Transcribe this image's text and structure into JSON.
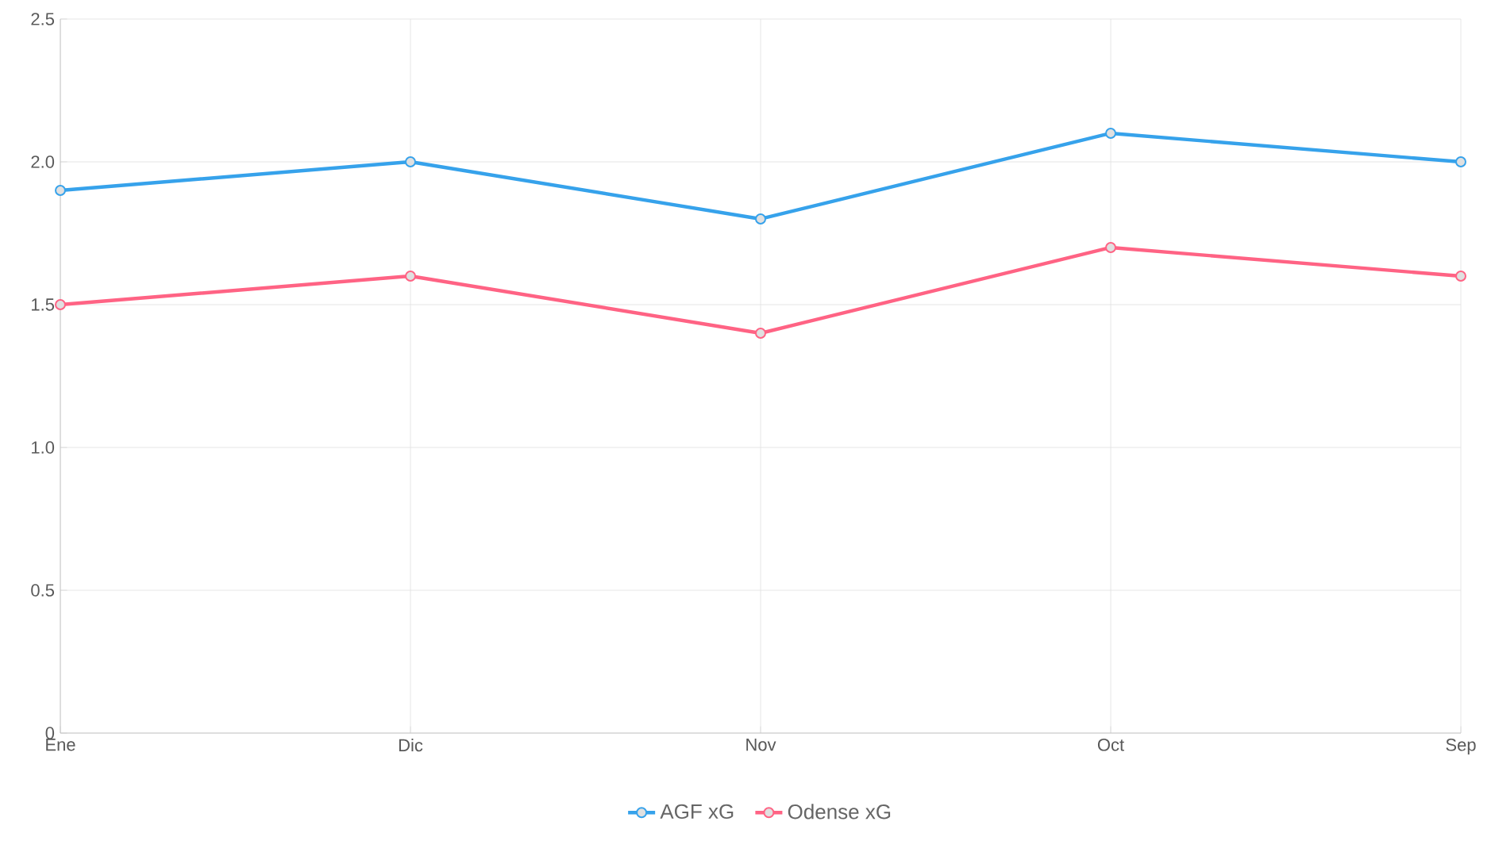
{
  "chart_data": {
    "type": "line",
    "categories": [
      "Ene",
      "Dic",
      "Nov",
      "Oct",
      "Sep"
    ],
    "series": [
      {
        "name": "AGF xG",
        "color": "#36a2eb",
        "values": [
          1.9,
          2.0,
          1.8,
          2.1,
          2.0
        ]
      },
      {
        "name": "Odense xG",
        "color": "#ff6384",
        "values": [
          1.5,
          1.6,
          1.4,
          1.7,
          1.6
        ]
      }
    ],
    "ylim": [
      0,
      2.5
    ],
    "yticks": [
      0,
      0.5,
      {
        "value": 1,
        "label": "1.0"
      },
      1.5,
      {
        "value": 2,
        "label": "2.0"
      },
      2.5
    ],
    "grid": true,
    "legend": "bottom",
    "marker": "circle",
    "line_style": "solid"
  }
}
